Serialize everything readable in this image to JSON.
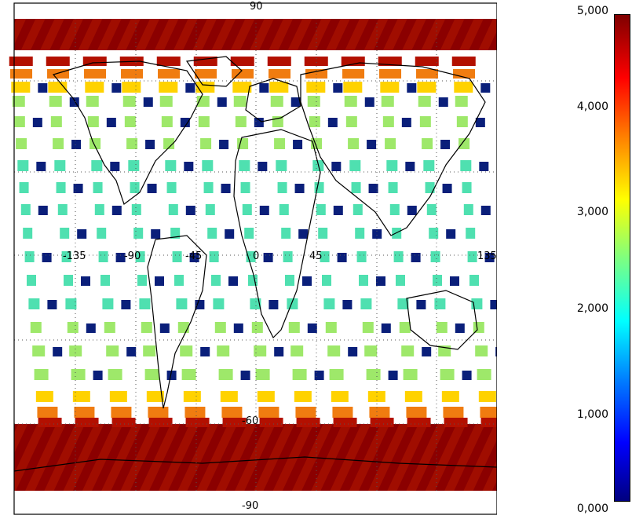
{
  "map": {
    "lat_labels": {
      "top": "90",
      "bottom": "-90",
      "lower": "-60"
    },
    "lon_labels": [
      "-135",
      "-90",
      "-45",
      "0",
      "45",
      "135"
    ],
    "colors": {
      "dark_red": "#8b0000",
      "red": "#b31000",
      "orange": "#f07c10",
      "yellow": "#ffd200",
      "green": "#9ee86a",
      "teal": "#4fe0b0",
      "navy": "#0a1f7a",
      "grid": "#555555"
    }
  },
  "colorbar": {
    "labels": [
      "5,000",
      "4,000",
      "3,000",
      "2,000",
      "1,000",
      "0,000"
    ],
    "colormap": "jet"
  }
}
